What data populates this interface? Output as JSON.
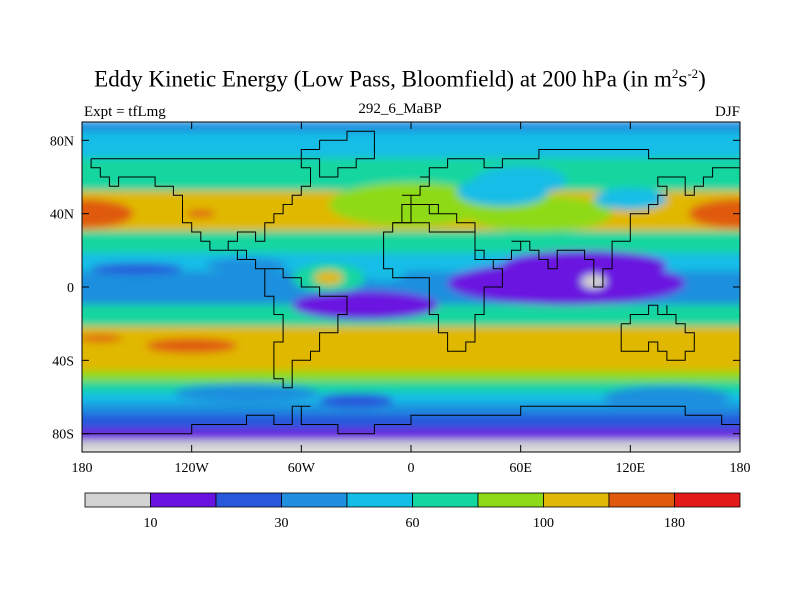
{
  "header": {
    "title_main": "Eddy Kinetic Energy (Low Pass, Bloomfield) at 200 hPa (in m",
    "title_sup1": "2",
    "title_s": "s",
    "title_sup2": "-2",
    "title_close": ")",
    "subtitle": "292_6_MaBP",
    "experiment": "Expt = tfLmg",
    "season": "DJF"
  },
  "chart_data": {
    "type": "heatmap",
    "title": "Eddy Kinetic Energy (Low Pass, Bloomfield) at 200 hPa (in m2s-2)",
    "units": "m2s-2",
    "pressure_level": "200 hPa",
    "x_ticks": [
      {
        "value": -180,
        "label": "180"
      },
      {
        "value": -120,
        "label": "120W"
      },
      {
        "value": -60,
        "label": "60W"
      },
      {
        "value": 0,
        "label": "0"
      },
      {
        "value": 60,
        "label": "60E"
      },
      {
        "value": 120,
        "label": "120E"
      },
      {
        "value": 180,
        "label": "180"
      }
    ],
    "y_ticks": [
      {
        "value": 80,
        "label": "80N"
      },
      {
        "value": 40,
        "label": "40N"
      },
      {
        "value": 0,
        "label": "0"
      },
      {
        "value": -40,
        "label": "40S"
      },
      {
        "value": -80,
        "label": "80S"
      }
    ],
    "xlim": [
      -180,
      180
    ],
    "ylim": [
      -90,
      90
    ],
    "colorbar": {
      "levels": [
        0,
        10,
        20,
        30,
        45,
        60,
        80,
        100,
        140,
        180,
        220
      ],
      "colors": [
        "#d2d2d2",
        "#6a13e0",
        "#2858dc",
        "#1f8fde",
        "#12bde6",
        "#14d6a0",
        "#8fda18",
        "#e0b806",
        "#e05a0c",
        "#e31a1a"
      ],
      "labels": [
        {
          "value": 10,
          "label": "10"
        },
        {
          "value": 30,
          "label": "30"
        },
        {
          "value": 60,
          "label": "60"
        },
        {
          "value": 100,
          "label": "100"
        },
        {
          "value": 180,
          "label": "180"
        }
      ]
    },
    "bands": [
      {
        "lat": [
          84,
          90
        ],
        "level": 3
      },
      {
        "lat": [
          70,
          84
        ],
        "level": 4
      },
      {
        "lat": [
          52,
          70
        ],
        "level": 5
      },
      {
        "lat": [
          30,
          52
        ],
        "level": 7
      },
      {
        "lat": [
          18,
          30
        ],
        "level": 5
      },
      {
        "lat": [
          8,
          18
        ],
        "level": 4
      },
      {
        "lat": [
          -10,
          8
        ],
        "level": 3
      },
      {
        "lat": [
          -22,
          -10
        ],
        "level": 5
      },
      {
        "lat": [
          -46,
          -22
        ],
        "level": 7
      },
      {
        "lat": [
          -52,
          -46
        ],
        "level": 6
      },
      {
        "lat": [
          -58,
          -52
        ],
        "level": 5
      },
      {
        "lat": [
          -64,
          -58
        ],
        "level": 4
      },
      {
        "lat": [
          -70,
          -64
        ],
        "level": 3
      },
      {
        "lat": [
          -78,
          -70
        ],
        "level": 2
      },
      {
        "lat": [
          -84,
          -78
        ],
        "level": 1
      },
      {
        "lat": [
          -90,
          -84
        ],
        "level": 0
      }
    ],
    "blobs": [
      {
        "lon": -180,
        "lat": 40,
        "rlon": 28,
        "rlat": 8,
        "level": 8
      },
      {
        "lon": 180,
        "lat": 40,
        "rlon": 28,
        "rlat": 8,
        "level": 8
      },
      {
        "lon": -115,
        "lat": 40,
        "rlon": 8,
        "rlat": 2,
        "level": 8
      },
      {
        "lon": 0,
        "lat": 45,
        "rlon": 45,
        "rlat": 12,
        "level": 6
      },
      {
        "lon": 70,
        "lat": 40,
        "rlon": 40,
        "rlat": 10,
        "level": 6
      },
      {
        "lon": 120,
        "lat": 48,
        "rlon": 20,
        "rlat": 6,
        "level": 4
      },
      {
        "lon": 50,
        "lat": 52,
        "rlon": 25,
        "rlat": 8,
        "level": 4
      },
      {
        "lon": 60,
        "lat": 58,
        "rlon": 25,
        "rlat": 8,
        "level": 4
      },
      {
        "lon": -150,
        "lat": 10,
        "rlon": 25,
        "rlat": 3,
        "level": 2
      },
      {
        "lon": -90,
        "lat": 12,
        "rlon": 22,
        "rlat": 4,
        "level": 3
      },
      {
        "lon": -45,
        "lat": 5,
        "rlon": 20,
        "rlat": 8,
        "level": 5
      },
      {
        "lon": -45,
        "lat": 5,
        "rlon": 8,
        "rlat": 4,
        "level": 7
      },
      {
        "lon": -15,
        "lat": 8,
        "rlon": 12,
        "rlat": 5,
        "level": 4
      },
      {
        "lon": 85,
        "lat": 2,
        "rlon": 65,
        "rlat": 12,
        "level": 1
      },
      {
        "lon": 95,
        "lat": 12,
        "rlon": 45,
        "rlat": 8,
        "level": 1
      },
      {
        "lon": 100,
        "lat": 3,
        "rlon": 7,
        "rlat": 4,
        "level": 0
      },
      {
        "lon": -25,
        "lat": -10,
        "rlon": 40,
        "rlat": 8,
        "level": 1
      },
      {
        "lon": -170,
        "lat": -28,
        "rlon": 12,
        "rlat": 2,
        "level": 8
      },
      {
        "lon": -120,
        "lat": -32,
        "rlon": 25,
        "rlat": 4,
        "level": 8
      },
      {
        "lon": -90,
        "lat": -58,
        "rlon": 40,
        "rlat": 5,
        "level": 3
      },
      {
        "lon": 140,
        "lat": -60,
        "rlon": 35,
        "rlat": 6,
        "level": 3
      },
      {
        "lon": -30,
        "lat": -62,
        "rlon": 20,
        "rlat": 4,
        "level": 2
      }
    ],
    "coastlines": [
      [
        [
          -174,
          68
        ],
        [
          -165,
          72
        ],
        [
          -150,
          72
        ],
        [
          -140,
          70
        ],
        [
          -125,
          71
        ],
        [
          -110,
          70
        ],
        [
          -95,
          72
        ],
        [
          -80,
          70
        ],
        [
          -70,
          68
        ],
        [
          -60,
          63
        ],
        [
          -56,
          55
        ],
        [
          -60,
          50
        ],
        [
          -67,
          45
        ],
        [
          -72,
          42
        ],
        [
          -76,
          37
        ],
        [
          -80,
          31
        ],
        [
          -82,
          26
        ],
        [
          -84,
          28
        ],
        [
          -90,
          29
        ],
        [
          -96,
          27
        ],
        [
          -98,
          22
        ],
        [
          -94,
          18
        ],
        [
          -88,
          15
        ],
        [
          -85,
          11
        ],
        [
          -80,
          8
        ],
        [
          -78,
          3
        ],
        [
          -80,
          -2
        ],
        [
          -81,
          -6
        ],
        [
          -76,
          -14
        ],
        [
          -72,
          -18
        ],
        [
          -71,
          -28
        ],
        [
          -73,
          -38
        ],
        [
          -74,
          -48
        ],
        [
          -70,
          -54
        ],
        [
          -66,
          -55
        ],
        [
          -65,
          -47
        ],
        [
          -63,
          -40
        ],
        [
          -57,
          -36
        ],
        [
          -48,
          -26
        ],
        [
          -41,
          -22
        ],
        [
          -38,
          -13
        ],
        [
          -35,
          -7
        ],
        [
          -38,
          -3
        ],
        [
          -50,
          0
        ],
        [
          -60,
          7
        ],
        [
          -70,
          12
        ],
        [
          -76,
          10
        ],
        [
          -80,
          9
        ],
        [
          -86,
          13
        ],
        [
          -90,
          16
        ],
        [
          -96,
          19
        ],
        [
          -105,
          21
        ],
        [
          -110,
          24
        ],
        [
          -115,
          30
        ],
        [
          -120,
          35
        ],
        [
          -124,
          41
        ],
        [
          -124,
          48
        ],
        [
          -130,
          55
        ],
        [
          -138,
          59
        ],
        [
          -150,
          60
        ],
        [
          -158,
          57
        ],
        [
          -165,
          61
        ],
        [
          -168,
          65
        ],
        [
          -174,
          68
        ]
      ],
      [
        [
          -52,
          82
        ],
        [
          -35,
          83
        ],
        [
          -22,
          81
        ],
        [
          -20,
          75
        ],
        [
          -22,
          70
        ],
        [
          -32,
          66
        ],
        [
          -42,
          61
        ],
        [
          -48,
          62
        ],
        [
          -52,
          68
        ],
        [
          -58,
          76
        ],
        [
          -52,
          82
        ]
      ],
      [
        [
          -10,
          36
        ],
        [
          -5,
          43
        ],
        [
          -2,
          48
        ],
        [
          -5,
          50
        ],
        [
          0,
          52
        ],
        [
          5,
          54
        ],
        [
          10,
          56
        ],
        [
          8,
          58
        ],
        [
          5,
          62
        ],
        [
          12,
          66
        ],
        [
          18,
          70
        ],
        [
          25,
          71
        ],
        [
          35,
          69
        ],
        [
          42,
          67
        ],
        [
          50,
          69
        ],
        [
          60,
          70
        ],
        [
          70,
          73
        ],
        [
          80,
          74
        ],
        [
          90,
          76
        ],
        [
          100,
          77
        ],
        [
          110,
          74
        ],
        [
          120,
          73
        ],
        [
          130,
          71
        ],
        [
          140,
          72
        ],
        [
          150,
          71
        ],
        [
          160,
          70
        ],
        [
          170,
          69
        ],
        [
          180,
          67
        ],
        [
          175,
          64
        ],
        [
          165,
          60
        ],
        [
          160,
          56
        ],
        [
          156,
          51
        ],
        [
          150,
          59
        ],
        [
          142,
          59
        ],
        [
          136,
          54
        ],
        [
          140,
          48
        ],
        [
          133,
          43
        ],
        [
          128,
          38
        ],
        [
          122,
          40
        ],
        [
          118,
          38
        ],
        [
          122,
          32
        ],
        [
          122,
          28
        ],
        [
          118,
          24
        ],
        [
          110,
          21
        ],
        [
          108,
          17
        ],
        [
          109,
          11
        ],
        [
          106,
          9
        ],
        [
          103,
          1
        ],
        [
          100,
          6
        ],
        [
          100,
          13
        ],
        [
          97,
          17
        ],
        [
          94,
          21
        ],
        [
          90,
          22
        ],
        [
          85,
          20
        ],
        [
          80,
          15
        ],
        [
          78,
          8
        ],
        [
          74,
          15
        ],
        [
          72,
          21
        ],
        [
          67,
          25
        ],
        [
          58,
          25
        ],
        [
          57,
          23
        ],
        [
          59,
          22
        ],
        [
          55,
          17
        ],
        [
          45,
          13
        ],
        [
          43,
          15
        ],
        [
          39,
          22
        ],
        [
          34,
          28
        ],
        [
          33,
          31
        ],
        [
          35,
          36
        ],
        [
          28,
          36
        ],
        [
          26,
          40
        ],
        [
          23,
          38
        ],
        [
          20,
          40
        ],
        [
          15,
          45
        ],
        [
          12,
          44
        ],
        [
          16,
          40
        ],
        [
          12,
          38
        ],
        [
          10,
          44
        ],
        [
          5,
          43
        ],
        [
          0,
          40
        ],
        [
          -2,
          37
        ],
        [
          -6,
          36
        ],
        [
          -10,
          36
        ]
      ],
      [
        [
          -17,
          21
        ],
        [
          -17,
          15
        ],
        [
          -15,
          11
        ],
        [
          -12,
          7
        ],
        [
          -8,
          5
        ],
        [
          -4,
          5
        ],
        [
          2,
          6
        ],
        [
          7,
          4
        ],
        [
          9,
          2
        ],
        [
          9,
          -4
        ],
        [
          12,
          -6
        ],
        [
          12,
          -12
        ],
        [
          12,
          -17
        ],
        [
          15,
          -27
        ],
        [
          18,
          -32
        ],
        [
          20,
          -35
        ],
        [
          26,
          -34
        ],
        [
          31,
          -29
        ],
        [
          33,
          -25
        ],
        [
          35,
          -22
        ],
        [
          36,
          -17
        ],
        [
          40,
          -15
        ],
        [
          40,
          -10
        ],
        [
          39,
          -5
        ],
        [
          42,
          -1
        ],
        [
          46,
          2
        ],
        [
          51,
          11
        ],
        [
          44,
          11
        ],
        [
          43,
          13
        ],
        [
          39,
          16
        ],
        [
          36,
          22
        ],
        [
          34,
          28
        ],
        [
          32,
          31
        ],
        [
          25,
          32
        ],
        [
          20,
          31
        ],
        [
          15,
          32
        ],
        [
          11,
          34
        ],
        [
          10,
          37
        ],
        [
          3,
          37
        ],
        [
          -2,
          35
        ],
        [
          -9,
          33
        ],
        [
          -12,
          28
        ],
        [
          -17,
          21
        ]
      ],
      [
        [
          114,
          -22
        ],
        [
          114,
          -26
        ],
        [
          115,
          -32
        ],
        [
          116,
          -35
        ],
        [
          122,
          -34
        ],
        [
          130,
          -32
        ],
        [
          135,
          -34
        ],
        [
          138,
          -35
        ],
        [
          141,
          -38
        ],
        [
          146,
          -39
        ],
        [
          150,
          -37
        ],
        [
          153,
          -28
        ],
        [
          153,
          -25
        ],
        [
          149,
          -20
        ],
        [
          146,
          -18
        ],
        [
          145,
          -14
        ],
        [
          142,
          -11
        ],
        [
          141,
          -14
        ],
        [
          136,
          -12
        ],
        [
          133,
          -11
        ],
        [
          130,
          -13
        ],
        [
          127,
          -14
        ],
        [
          124,
          -16
        ],
        [
          122,
          -18
        ],
        [
          118,
          -20
        ],
        [
          114,
          -22
        ]
      ],
      [
        [
          -180,
          -78
        ],
        [
          -150,
          -78
        ],
        [
          -120,
          -74
        ],
        [
          -90,
          -72
        ],
        [
          -75,
          -73
        ],
        [
          -63,
          -64
        ],
        [
          -57,
          -63
        ],
        [
          -58,
          -67
        ],
        [
          -62,
          -72
        ],
        [
          -60,
          -77
        ],
        [
          -40,
          -79
        ],
        [
          -20,
          -76
        ],
        [
          0,
          -71
        ],
        [
          30,
          -69
        ],
        [
          60,
          -67
        ],
        [
          90,
          -66
        ],
        [
          120,
          -66
        ],
        [
          150,
          -68
        ],
        [
          165,
          -72
        ],
        [
          168,
          -76
        ],
        [
          180,
          -78
        ]
      ]
    ]
  }
}
